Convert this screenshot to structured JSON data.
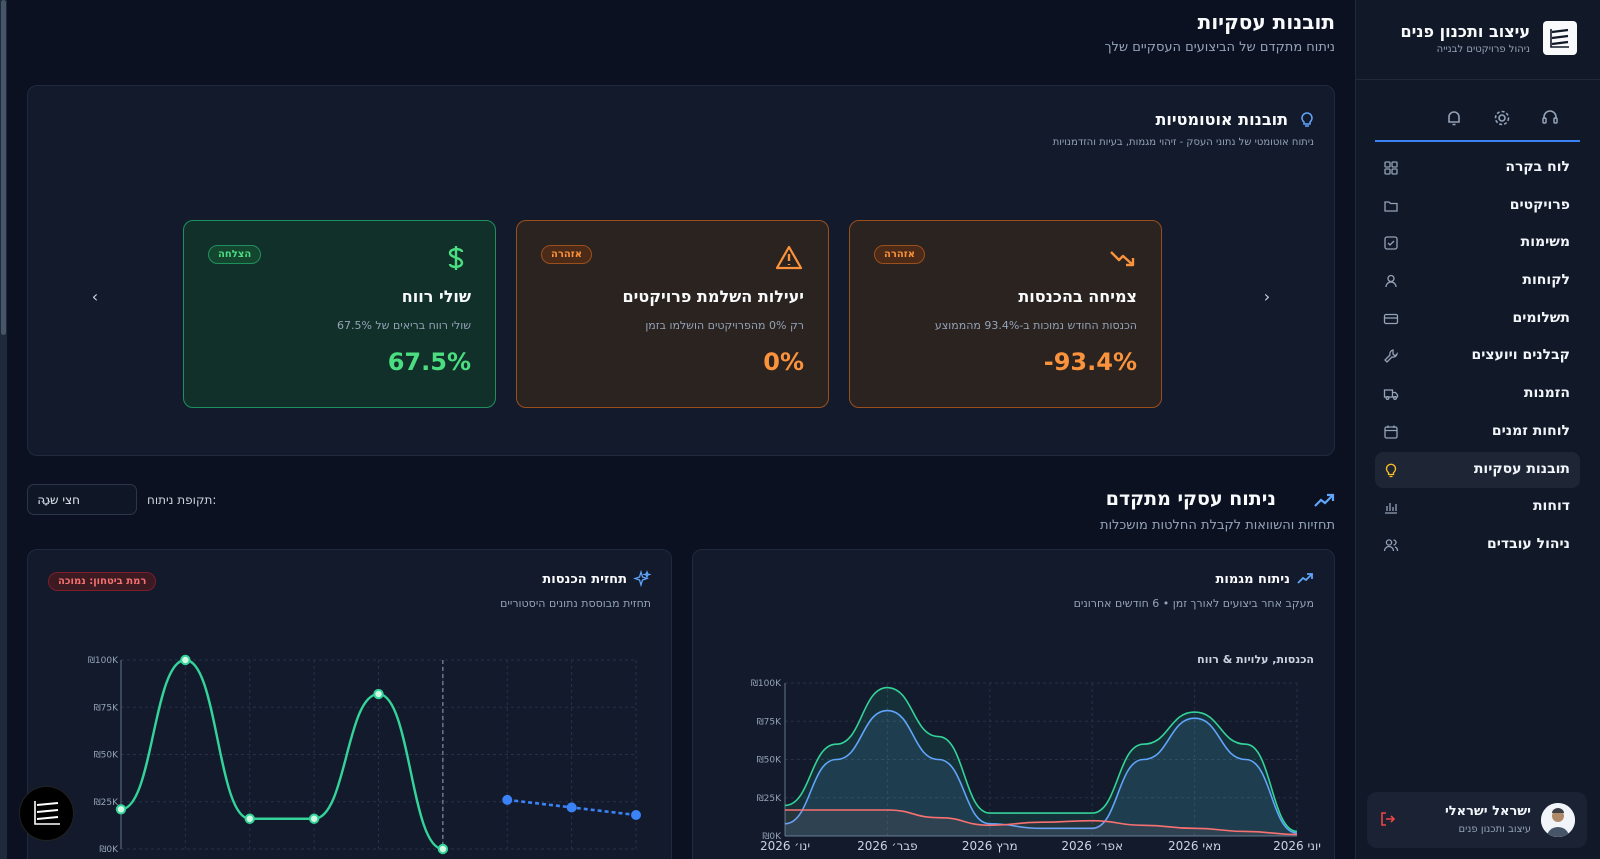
{
  "sidebar": {
    "brand_title": "עיצוב ותכנון פנים",
    "brand_subtitle": "ניהול פרויקטים לבנייה",
    "items": [
      {
        "label": "לוח בקרה",
        "icon": "dashboard-icon"
      },
      {
        "label": "פרויקטים",
        "icon": "folder-icon"
      },
      {
        "label": "משימות",
        "icon": "checkbox-icon"
      },
      {
        "label": "לקוחות",
        "icon": "user-icon"
      },
      {
        "label": "תשלומים",
        "icon": "credit-card-icon"
      },
      {
        "label": "קבלנים ויועצים",
        "icon": "wrench-icon"
      },
      {
        "label": "הזמנות",
        "icon": "truck-icon"
      },
      {
        "label": "לוחות זמנים",
        "icon": "calendar-icon"
      },
      {
        "label": "תובנות עסקיות",
        "icon": "lightbulb-icon",
        "active": true
      },
      {
        "label": "דוחות",
        "icon": "bar-chart-icon"
      },
      {
        "label": "ניהול עובדים",
        "icon": "users-icon"
      }
    ],
    "user": {
      "name": "ישראל ישראלי",
      "role": "עיצוב ותכנון פנים"
    }
  },
  "header": {
    "title": "תובנות עסקיות",
    "subtitle": "ניתוח מתקדם של הביצועים העסקיים שלך"
  },
  "insights": {
    "title": "תובנות אוטומטיות",
    "subtitle": "ניתוח אוטומטי של נתוני העסק - זיהוי מגמות, בעיות והזדמנויות",
    "cards": [
      {
        "badge": "אזהרה",
        "title": "צמיחה בהכנסות",
        "desc": "הכנסות החודש נמוכות ב-93.4% מהממוצע",
        "value": "-93.4%",
        "icon": "trending-down-icon",
        "variant": "warn"
      },
      {
        "badge": "אזהרה",
        "title": "יעילות השלמת פרויקטים",
        "desc": "רק 0% מהפרויקטים הושלמו בזמן",
        "value": "0%",
        "icon": "warning-triangle-icon",
        "variant": "warn"
      },
      {
        "badge": "הצלחה",
        "title": "שולי רווח",
        "desc": "שולי רווח בריאים של 67.5%",
        "value": "67.5%",
        "icon": "dollar-icon",
        "variant": "ok"
      }
    ]
  },
  "advanced": {
    "title": "ניתוח עסקי מתקדם",
    "subtitle": "תחזיות והשוואות לקבלת החלטות מושכלות",
    "period_label": "תקופת ניתוח:",
    "period_value": "חצי שנה"
  },
  "trends_panel": {
    "title": "ניתוח מגמות",
    "subtitle": "מעקב אחר ביצועים לאורך זמן • 6 חודשים אחרונים",
    "chart_title": "הכנסות, עלויות & רווח"
  },
  "forecast_panel": {
    "title": "תחזית הכנסות",
    "subtitle": "תחזית מבוססת נתונים היסטוריים",
    "confidence": "רמת ביטחון: נמוכה"
  },
  "chart_data": [
    {
      "type": "area",
      "title": "הכנסות, עלויות & רווח",
      "categories": [
        "ינו׳ 2026",
        "פבר׳ 2026",
        "מרץ 2026",
        "אפר׳ 2026",
        "מאי 2026",
        "יוני 2026"
      ],
      "y_ticks": [
        "₪0K",
        "₪25K",
        "₪50K",
        "₪75K",
        "₪100K"
      ],
      "ylim": [
        0,
        100000
      ],
      "x": [
        0,
        0.5,
        1,
        1.5,
        2,
        2.5,
        3,
        3.5,
        4,
        4.5,
        5
      ],
      "series": [
        {
          "color": "#34d399",
          "values": [
            20000,
            60000,
            97000,
            65000,
            15000,
            15000,
            15000,
            60000,
            81000,
            60000,
            3000
          ]
        },
        {
          "color": "#60a5fa",
          "values": [
            8000,
            50000,
            82000,
            50000,
            8000,
            5000,
            5000,
            50000,
            77000,
            50000,
            2000
          ]
        },
        {
          "color": "#f87171",
          "values": [
            17000,
            17000,
            17000,
            12000,
            7000,
            9000,
            10000,
            7000,
            5000,
            3000,
            1000
          ]
        }
      ]
    },
    {
      "type": "line",
      "title": "תחזית הכנסות",
      "y_ticks": [
        "₪0K",
        "₪25K",
        "₪50K",
        "₪75K",
        "₪100K"
      ],
      "ylim": [
        0,
        100000
      ],
      "x": [
        0,
        1,
        2,
        3,
        4,
        5,
        6,
        7,
        8
      ],
      "series": [
        {
          "color": "#34d399",
          "values": [
            21000,
            100000,
            16000,
            16000,
            82000,
            0
          ],
          "x": [
            0,
            1,
            2,
            3,
            4,
            5
          ]
        },
        {
          "color": "#3b82f6",
          "values": [
            26000,
            22000,
            18000
          ],
          "x": [
            6,
            7,
            8
          ],
          "dashed": true
        }
      ]
    }
  ]
}
